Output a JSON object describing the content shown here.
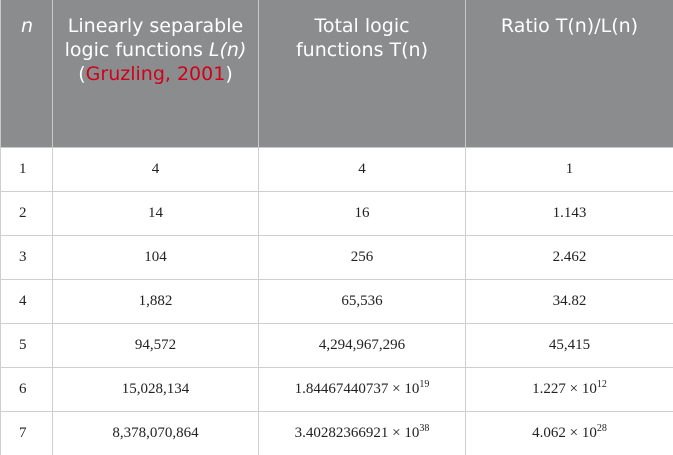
{
  "table": {
    "header": [
      [
        "n"
      ],
      [
        "Linearly separable logic functions ",
        "L",
        "(",
        "n",
        ")",
        " (",
        "Gruzling, 2001",
        ")"
      ],
      [
        "Total logic functions T(n)"
      ],
      [
        "Ratio T(n)/L(n)"
      ]
    ],
    "rows": [
      [
        "1",
        "4",
        "4",
        "1"
      ],
      [
        "2",
        "14",
        "16",
        "1.143"
      ],
      [
        "3",
        "104",
        "256",
        "2.462"
      ],
      [
        "4",
        "1,882",
        "65,536",
        "34.82"
      ],
      [
        "5",
        "94,572",
        "4,294,967,296",
        "45,415"
      ],
      [
        "6",
        "15,028,134",
        {
          "mantissa": "1.84467440737 × 10",
          "exponent": "19"
        },
        {
          "mantissa": "1.227 × 10",
          "exponent": "12"
        }
      ],
      [
        "7",
        "8,378,070,864",
        {
          "mantissa": "3.40282366921 × 10",
          "exponent": "38"
        },
        {
          "mantissa": "4.062 × 10",
          "exponent": "28"
        }
      ]
    ]
  }
}
